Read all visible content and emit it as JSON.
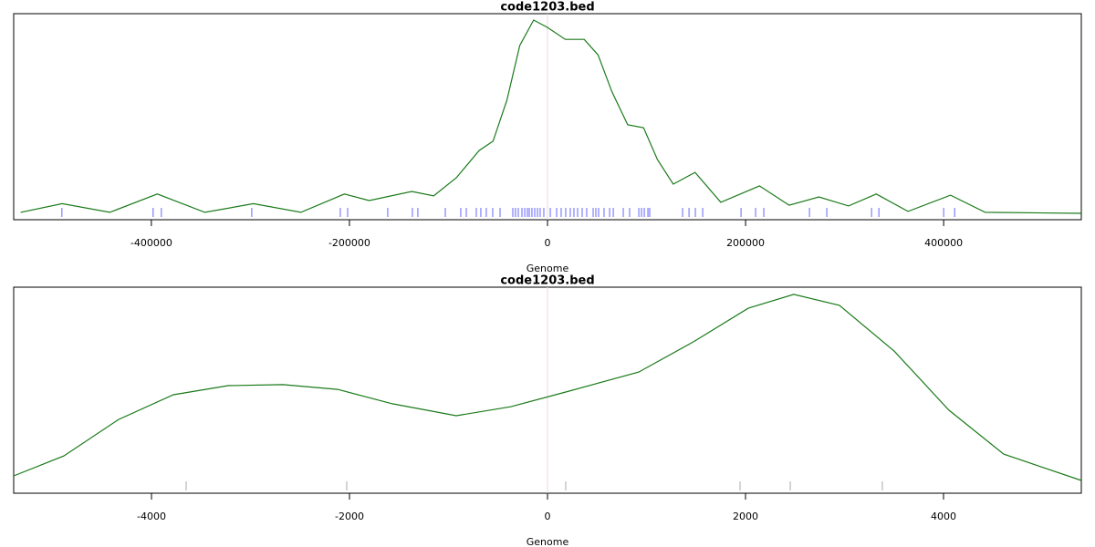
{
  "chart_data": [
    {
      "type": "line",
      "title": "code1203.bed",
      "xlabel": "Genome",
      "color": "#1a7a1a",
      "xlim": [
        -539000,
        539000
      ],
      "ylim": [
        -0.033,
        1.033
      ],
      "xticks": [
        -400000,
        -200000,
        0,
        200000,
        400000
      ],
      "x": [
        -532000,
        -490000,
        -442000,
        -394000,
        -346000,
        -297000,
        -249000,
        -205000,
        -180000,
        -137000,
        -115000,
        -92000,
        -69000,
        -55000,
        -41000,
        -28000,
        -14000,
        0,
        18000,
        37000,
        51000,
        65000,
        81000,
        97000,
        111000,
        127000,
        149000,
        175000,
        214000,
        244000,
        274000,
        304000,
        332000,
        364000,
        407000,
        442000,
        539000
      ],
      "values": [
        0.005,
        0.05,
        0.005,
        0.1,
        0.005,
        0.05,
        0.005,
        0.1,
        0.066,
        0.113,
        0.09,
        0.184,
        0.325,
        0.373,
        0.585,
        0.868,
        1.0,
        0.962,
        0.9,
        0.9,
        0.82,
        0.63,
        0.458,
        0.443,
        0.278,
        0.151,
        0.212,
        0.057,
        0.142,
        0.042,
        0.085,
        0.038,
        0.1,
        0.01,
        0.094,
        0.005,
        0
      ],
      "rug": [
        -490300,
        -398200,
        -389900,
        -298600,
        -209200,
        -201800,
        -161300,
        -136400,
        -130900,
        -103200,
        -87600,
        -82000,
        -71900,
        -67300,
        -61800,
        -55300,
        -47900,
        -35000,
        -32300,
        -29500,
        -25800,
        -23000,
        -20300,
        -18400,
        -15700,
        -12900,
        -10100,
        -7400,
        -3700,
        2800,
        9200,
        13800,
        18400,
        23000,
        26700,
        30400,
        35000,
        39600,
        46100,
        48800,
        51600,
        57100,
        62700,
        66400,
        76500,
        82900,
        92200,
        94900,
        97700,
        101400,
        103200,
        136400,
        142900,
        149300,
        156700,
        195400,
        210100,
        218400,
        264500,
        282000,
        327200,
        334600,
        400000,
        411100
      ],
      "rug_color": "#6666ff"
    },
    {
      "type": "line",
      "title": "code1203.bed",
      "xlabel": "Genome",
      "color": "#1a7a1a",
      "xlim": [
        -5392,
        5392
      ],
      "ylim": [
        0,
        1
      ],
      "xticks": [
        -4000,
        -2000,
        0,
        2000,
        4000
      ],
      "x": [
        -5392,
        -4885,
        -4332,
        -3779,
        -3226,
        -2673,
        -2120,
        -1567,
        -922,
        -369,
        184,
        922,
        1475,
        2028,
        2488,
        2949,
        3502,
        4055,
        4608,
        5392
      ],
      "values": [
        0.084,
        0.181,
        0.358,
        0.478,
        0.522,
        0.527,
        0.504,
        0.434,
        0.376,
        0.42,
        0.491,
        0.588,
        0.735,
        0.898,
        0.965,
        0.912,
        0.69,
        0.403,
        0.19,
        0.062
      ],
      "rug": [
        -3650,
        -2028,
        184,
        1945,
        2452,
        3382
      ],
      "rug_color": "#aaaaaa"
    }
  ]
}
